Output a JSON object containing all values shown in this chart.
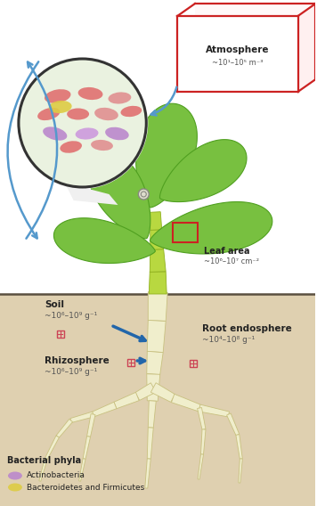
{
  "bg_color": "#ffffff",
  "soil_color": "#dfd0b0",
  "soil_line_color": "#888870",
  "root_fill": "#f0eecc",
  "root_stroke": "#c8c080",
  "stem_fill": "#b8d840",
  "stem_stroke": "#90b020",
  "leaf_fill": "#78c040",
  "leaf_mid": "#90cc50",
  "leaf_dark": "#50a020",
  "leaf_stroke": "#50a020",
  "circle_bg": "#eaf2e0",
  "circle_stroke": "#333333",
  "atm_box_color": "#cc2222",
  "blue_arrow": "#5599cc",
  "text_dark": "#222222",
  "text_gray": "#555555",
  "pink_sq": "#cc4455",
  "microbe_pink": "#e07070",
  "microbe_salmon": "#e09090",
  "microbe_purple": "#bb88cc",
  "microbe_lavender": "#cc99dd",
  "microbe_yellow": "#ddcc44",
  "atm_title": "Atmosphere",
  "atm_label": "~10¹–10⁵ m⁻³",
  "leaf_title": "Leaf area",
  "leaf_label": "~10⁶–10⁷ cm⁻²",
  "soil_title": "Soil",
  "soil_label": "~10⁶–10⁹ g⁻¹",
  "rhizo_title": "Rhizosphere",
  "rhizo_label": "~10⁶–10⁹ g⁻¹",
  "root_title": "Root endosphere",
  "root_label": "~10⁴–10⁸ g⁻¹",
  "leg_title": "Bacterial phyla",
  "leg_actino": "Actinobacteria",
  "leg_bactero": "Bacteroidetes and Firmicutes"
}
